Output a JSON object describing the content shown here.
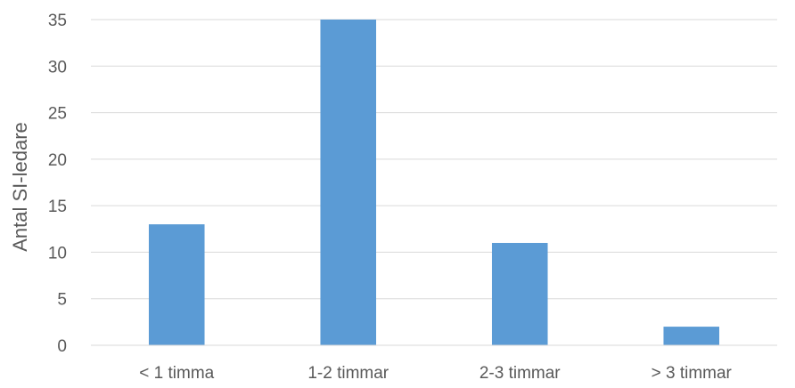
{
  "chart_data": {
    "type": "bar",
    "categories": [
      "< 1 timma",
      "1-2 timmar",
      "2-3 timmar",
      "> 3 timmar"
    ],
    "values": [
      13,
      35,
      11,
      2
    ],
    "title": "",
    "xlabel": "",
    "ylabel": "Antal SI-ledare",
    "ylim": [
      0,
      35
    ],
    "yticks": [
      0,
      5,
      10,
      15,
      20,
      25,
      30,
      35
    ],
    "grid": true,
    "legend": "none",
    "bar_color": "#5b9bd5"
  }
}
